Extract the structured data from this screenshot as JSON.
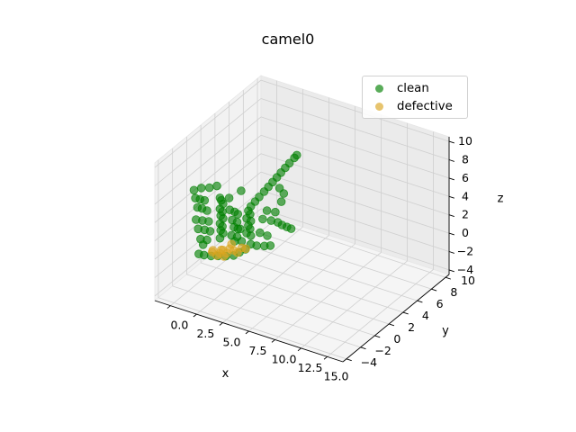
{
  "chart_data": {
    "type": "scatter",
    "projection": "3d",
    "title": "camel0",
    "xlabel": "x",
    "ylabel": "y",
    "zlabel": "z",
    "xlim": [
      -1.5,
      16.5
    ],
    "ylim": [
      -4.5,
      10.5
    ],
    "zlim": [
      -4.5,
      10.5
    ],
    "x_ticks": [
      "0.0",
      "2.5",
      "5.0",
      "7.5",
      "10.0",
      "12.5",
      "15.0"
    ],
    "y_ticks": [
      "−4",
      "−2",
      "0",
      "2",
      "4",
      "6",
      "8",
      "10"
    ],
    "z_ticks": [
      "−4",
      "−2",
      "0",
      "2",
      "4",
      "6",
      "8",
      "10"
    ],
    "x_tick_values": [
      0,
      2.5,
      5,
      7.5,
      10,
      12.5,
      15
    ],
    "y_tick_values": [
      -4,
      -2,
      0,
      2,
      4,
      6,
      8,
      10
    ],
    "z_tick_values": [
      -4,
      -2,
      0,
      2,
      4,
      6,
      8,
      10
    ],
    "grid": true,
    "legend_position": "top-right",
    "series": [
      {
        "name": "clean",
        "color": "#008000",
        "points": [
          [
            -0.6,
            -0.3,
            5.2
          ],
          [
            -0.5,
            0.6,
            4.9
          ],
          [
            -0.2,
            1.3,
            4.6
          ],
          [
            -0.6,
            -0.1,
            4.2
          ],
          [
            -0.5,
            0.4,
            3.8
          ],
          [
            -0.4,
            0.9,
            3.4
          ],
          [
            -0.6,
            0.2,
            3.0
          ],
          [
            -0.5,
            0.7,
            2.6
          ],
          [
            -0.3,
            1.1,
            2.2
          ],
          [
            -0.6,
            0.0,
            1.8
          ],
          [
            -0.4,
            0.6,
            1.4
          ],
          [
            -0.2,
            1.2,
            1.0
          ],
          [
            -0.6,
            0.3,
            0.6
          ],
          [
            -0.4,
            0.9,
            0.2
          ],
          [
            -0.2,
            1.4,
            -0.2
          ],
          [
            -0.5,
            0.5,
            -0.6
          ],
          [
            -0.3,
            1.1,
            -1.0
          ],
          [
            -0.4,
            0.7,
            -1.3
          ],
          [
            0.6,
            1.6,
            3.6
          ],
          [
            0.6,
            1.8,
            3.2
          ],
          [
            0.7,
            1.9,
            2.8
          ],
          [
            0.6,
            1.6,
            2.4
          ],
          [
            0.7,
            1.8,
            2.0
          ],
          [
            0.6,
            1.7,
            1.6
          ],
          [
            0.7,
            1.9,
            1.2
          ],
          [
            0.6,
            1.6,
            0.8
          ],
          [
            0.7,
            1.8,
            0.4
          ],
          [
            0.6,
            1.7,
            0.0
          ],
          [
            0.7,
            1.9,
            -0.4
          ],
          [
            0.6,
            1.6,
            -0.8
          ],
          [
            1.2,
            2.1,
            2.2
          ],
          [
            1.4,
            2.5,
            1.8
          ],
          [
            1.5,
            2.8,
            1.4
          ],
          [
            1.3,
            2.3,
            1.0
          ],
          [
            1.5,
            2.7,
            0.6
          ],
          [
            1.4,
            2.4,
            0.2
          ],
          [
            1.5,
            2.8,
            -0.2
          ],
          [
            1.3,
            2.2,
            -0.6
          ],
          [
            1.5,
            2.7,
            -1.0
          ],
          [
            1.4,
            2.5,
            -1.4
          ],
          [
            2.2,
            3.6,
            2.0
          ],
          [
            2.4,
            3.9,
            2.4
          ],
          [
            2.6,
            4.2,
            2.8
          ],
          [
            2.8,
            4.6,
            3.2
          ],
          [
            3.0,
            4.9,
            3.6
          ],
          [
            3.2,
            5.2,
            4.0
          ],
          [
            3.4,
            5.5,
            4.4
          ],
          [
            3.6,
            5.8,
            4.8
          ],
          [
            3.8,
            6.1,
            5.2
          ],
          [
            4.0,
            6.4,
            5.6
          ],
          [
            4.2,
            6.8,
            6.0
          ],
          [
            4.3,
            7.0,
            6.2
          ],
          [
            2.1,
            3.4,
            1.6
          ],
          [
            2.2,
            3.5,
            1.2
          ],
          [
            2.0,
            3.3,
            0.8
          ],
          [
            2.2,
            3.6,
            0.4
          ],
          [
            2.1,
            3.4,
            0.0
          ],
          [
            2.2,
            3.5,
            -0.4
          ],
          [
            2.0,
            3.3,
            -0.8
          ],
          [
            2.2,
            3.6,
            -1.2
          ],
          [
            3.0,
            4.1,
            0.6
          ],
          [
            3.4,
            4.7,
            0.2
          ],
          [
            3.7,
            5.2,
            -0.2
          ],
          [
            3.9,
            5.5,
            -0.6
          ],
          [
            4.1,
            5.9,
            -1.0
          ],
          [
            3.2,
            4.4,
            1.4
          ],
          [
            3.6,
            5.0,
            1.0
          ],
          [
            3.9,
            5.4,
            2.0
          ],
          [
            4.0,
            5.6,
            2.8
          ],
          [
            3.8,
            5.3,
            3.5
          ],
          [
            2.6,
            3.0,
            -1.6
          ],
          [
            2.9,
            3.4,
            -1.9
          ],
          [
            3.3,
            3.9,
            -2.1
          ],
          [
            3.6,
            4.3,
            -2.2
          ],
          [
            2.5,
            2.4,
            -1.8
          ],
          [
            2.2,
            2.0,
            -2.0
          ],
          [
            1.9,
            1.6,
            -2.2
          ],
          [
            1.5,
            1.1,
            -2.1
          ],
          [
            1.1,
            0.6,
            -1.9
          ],
          [
            0.7,
            0.2,
            -1.8
          ],
          [
            0.3,
            -0.2,
            -1.6
          ],
          [
            0.0,
            -0.5,
            -1.4
          ],
          [
            1.8,
            2.9,
            -1.5
          ],
          [
            3.1,
            4.6,
            -1.5
          ],
          [
            4.3,
            6.2,
            -1.3
          ],
          [
            -0.3,
            2.5,
            4.0
          ],
          [
            1.0,
            4.0,
            3.0
          ],
          [
            0.4,
            3.2,
            2.5
          ],
          [
            1.6,
            3.0,
            -0.3
          ],
          [
            2.8,
            4.0,
            -0.9
          ]
        ]
      },
      {
        "name": "defective",
        "color": "#daa520",
        "points": [
          [
            0.6,
            0.5,
            -1.6
          ],
          [
            1.0,
            1.0,
            -1.9
          ],
          [
            1.4,
            1.4,
            -2.0
          ],
          [
            1.8,
            1.8,
            -1.8
          ],
          [
            2.2,
            2.3,
            -1.7
          ],
          [
            1.2,
            0.9,
            -1.4
          ],
          [
            0.8,
            0.3,
            -1.2
          ],
          [
            1.6,
            1.5,
            -1.5
          ],
          [
            2.0,
            2.0,
            -2.1
          ],
          [
            1.1,
            1.3,
            -1.7
          ],
          [
            0.9,
            0.7,
            -2.0
          ],
          [
            1.5,
            1.9,
            -1.3
          ],
          [
            2.4,
            2.6,
            -1.9
          ],
          [
            1.3,
            1.1,
            -2.2
          ]
        ]
      }
    ]
  }
}
